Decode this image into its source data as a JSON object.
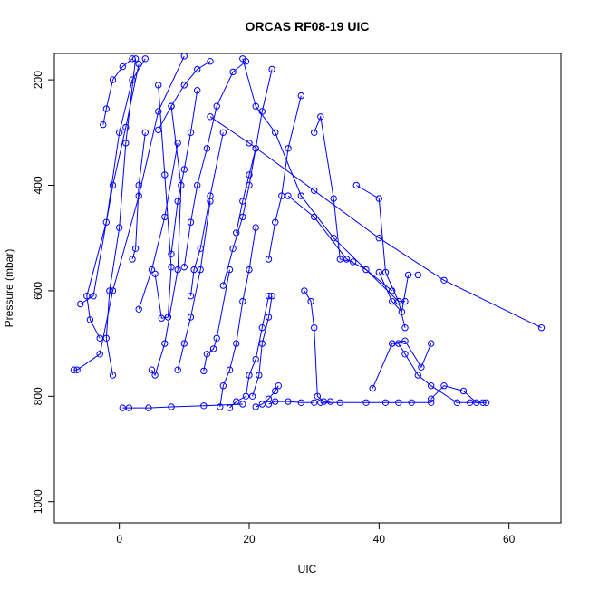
{
  "chart_data": {
    "type": "line",
    "title": "ORCAS RF08-19 UIC",
    "xlabel": "UIC",
    "ylabel": "Pressure (mbar)",
    "xlim": [
      -10,
      68
    ],
    "ylim": [
      1040,
      150
    ],
    "y_reversed": true,
    "grid": false,
    "legend": "none",
    "marker": "open-circle",
    "color": "#0000ff",
    "x_ticks": [
      0,
      20,
      40,
      60
    ],
    "y_ticks": [
      200,
      400,
      600,
      800,
      1000
    ],
    "series": [
      {
        "x": [
          -7,
          -6.5,
          -3,
          -1,
          3,
          6,
          10
        ],
        "y": [
          750,
          750,
          720,
          600,
          420,
          260,
          155
        ]
      },
      {
        "x": [
          -3,
          -4.5,
          -5,
          -2,
          0,
          2,
          4
        ],
        "y": [
          690,
          655,
          610,
          470,
          300,
          200,
          160
        ]
      },
      {
        "x": [
          -1,
          -2,
          -1.5,
          0,
          1,
          2.5
        ],
        "y": [
          760,
          690,
          600,
          480,
          320,
          160
        ]
      },
      {
        "x": [
          0.5,
          1.5,
          4.5,
          8,
          13,
          19
        ],
        "y": [
          822,
          822,
          822,
          820,
          818,
          815
        ]
      },
      {
        "x": [
          -6,
          -4,
          -1,
          1,
          3
        ],
        "y": [
          625,
          610,
          400,
          290,
          170
        ]
      },
      {
        "x": [
          5,
          5.5,
          7,
          9,
          9.5,
          8
        ],
        "y": [
          750,
          760,
          700,
          560,
          400,
          250
        ]
      },
      {
        "x": [
          5.5,
          6.5,
          7.5,
          8,
          7,
          6
        ],
        "y": [
          568,
          652,
          650,
          555,
          380,
          210
        ]
      },
      {
        "x": [
          10,
          11,
          12,
          13.5,
          15,
          17.5,
          19.5
        ],
        "y": [
          555,
          470,
          400,
          330,
          250,
          185,
          165
        ]
      },
      {
        "x": [
          13,
          13.5,
          14.5,
          15,
          17
        ],
        "y": [
          752,
          720,
          710,
          690,
          560
        ]
      },
      {
        "x": [
          15.5,
          16,
          17,
          18,
          19,
          20,
          21
        ],
        "y": [
          820,
          780,
          750,
          700,
          620,
          560,
          480
        ]
      },
      {
        "x": [
          17,
          18,
          19.5,
          20,
          21,
          22,
          23
        ],
        "y": [
          822,
          810,
          800,
          760,
          730,
          670,
          610
        ]
      },
      {
        "x": [
          18,
          19,
          20,
          21,
          22,
          23.5
        ],
        "y": [
          490,
          430,
          380,
          330,
          260,
          180
        ]
      },
      {
        "x": [
          20.5,
          21.5,
          22,
          23,
          23.5
        ],
        "y": [
          800,
          760,
          700,
          650,
          610
        ]
      },
      {
        "x": [
          21,
          22,
          23,
          24,
          24.5
        ],
        "y": [
          820,
          815,
          805,
          790,
          780
        ]
      },
      {
        "x": [
          23,
          24,
          26,
          28,
          30
        ],
        "y": [
          815,
          810,
          810,
          812,
          812
        ]
      },
      {
        "x": [
          28.5,
          29.5,
          30,
          30.5,
          31.5,
          32.5
        ],
        "y": [
          600,
          620,
          670,
          800,
          810,
          810
        ]
      },
      {
        "x": [
          30,
          31,
          33,
          34,
          36
        ],
        "y": [
          300,
          270,
          425,
          540,
          545
        ]
      },
      {
        "x": [
          31,
          34,
          38,
          41,
          43,
          45,
          48
        ],
        "y": [
          812,
          812,
          812,
          812,
          812,
          812,
          812
        ]
      },
      {
        "x": [
          42,
          43,
          44,
          46,
          48,
          52,
          54,
          56
        ],
        "y": [
          700,
          700,
          720,
          760,
          780,
          812,
          812,
          812
        ]
      },
      {
        "x": [
          39,
          42,
          44,
          46.5,
          48
        ],
        "y": [
          785,
          700,
          695,
          745,
          700
        ]
      },
      {
        "x": [
          48,
          50,
          53,
          55,
          56.5
        ],
        "y": [
          805,
          780,
          790,
          812,
          812
        ]
      },
      {
        "x": [
          36.5,
          40,
          41,
          43,
          44
        ],
        "y": [
          400,
          425,
          565,
          620,
          620
        ]
      },
      {
        "x": [
          40,
          42,
          43.5,
          44.5,
          46
        ],
        "y": [
          565,
          620,
          640,
          570,
          570
        ]
      },
      {
        "x": [
          26,
          30,
          35,
          38,
          42
        ],
        "y": [
          420,
          460,
          540,
          560,
          600
        ]
      },
      {
        "x": [
          14,
          20,
          30,
          40,
          50,
          65
        ],
        "y": [
          270,
          320,
          410,
          500,
          580,
          670
        ]
      },
      {
        "x": [
          19,
          21,
          24,
          28,
          33,
          43,
          44
        ],
        "y": [
          160,
          250,
          300,
          420,
          500,
          620,
          670
        ]
      },
      {
        "x": [
          2,
          2.5,
          3,
          4
        ],
        "y": [
          540,
          520,
          400,
          300
        ]
      },
      {
        "x": [
          8,
          9,
          10,
          11,
          12
        ],
        "y": [
          530,
          430,
          370,
          300,
          220
        ]
      },
      {
        "x": [
          11,
          11.5,
          12.5,
          14,
          16
        ],
        "y": [
          610,
          560,
          520,
          420,
          300
        ]
      },
      {
        "x": [
          9,
          10,
          11,
          12.5,
          14
        ],
        "y": [
          750,
          700,
          650,
          560,
          430
        ]
      },
      {
        "x": [
          3,
          5,
          7,
          9
        ],
        "y": [
          635,
          560,
          460,
          320
        ]
      },
      {
        "x": [
          -2.5,
          -2,
          -1,
          0.5,
          2
        ],
        "y": [
          285,
          255,
          200,
          175,
          160
        ]
      },
      {
        "x": [
          6,
          8,
          10,
          12,
          14
        ],
        "y": [
          295,
          250,
          210,
          180,
          165
        ]
      },
      {
        "x": [
          16,
          17.5,
          19,
          20,
          21
        ],
        "y": [
          590,
          520,
          460,
          400,
          330
        ]
      },
      {
        "x": [
          23,
          24,
          25,
          26,
          28
        ],
        "y": [
          540,
          470,
          420,
          330,
          230
        ]
      }
    ]
  }
}
